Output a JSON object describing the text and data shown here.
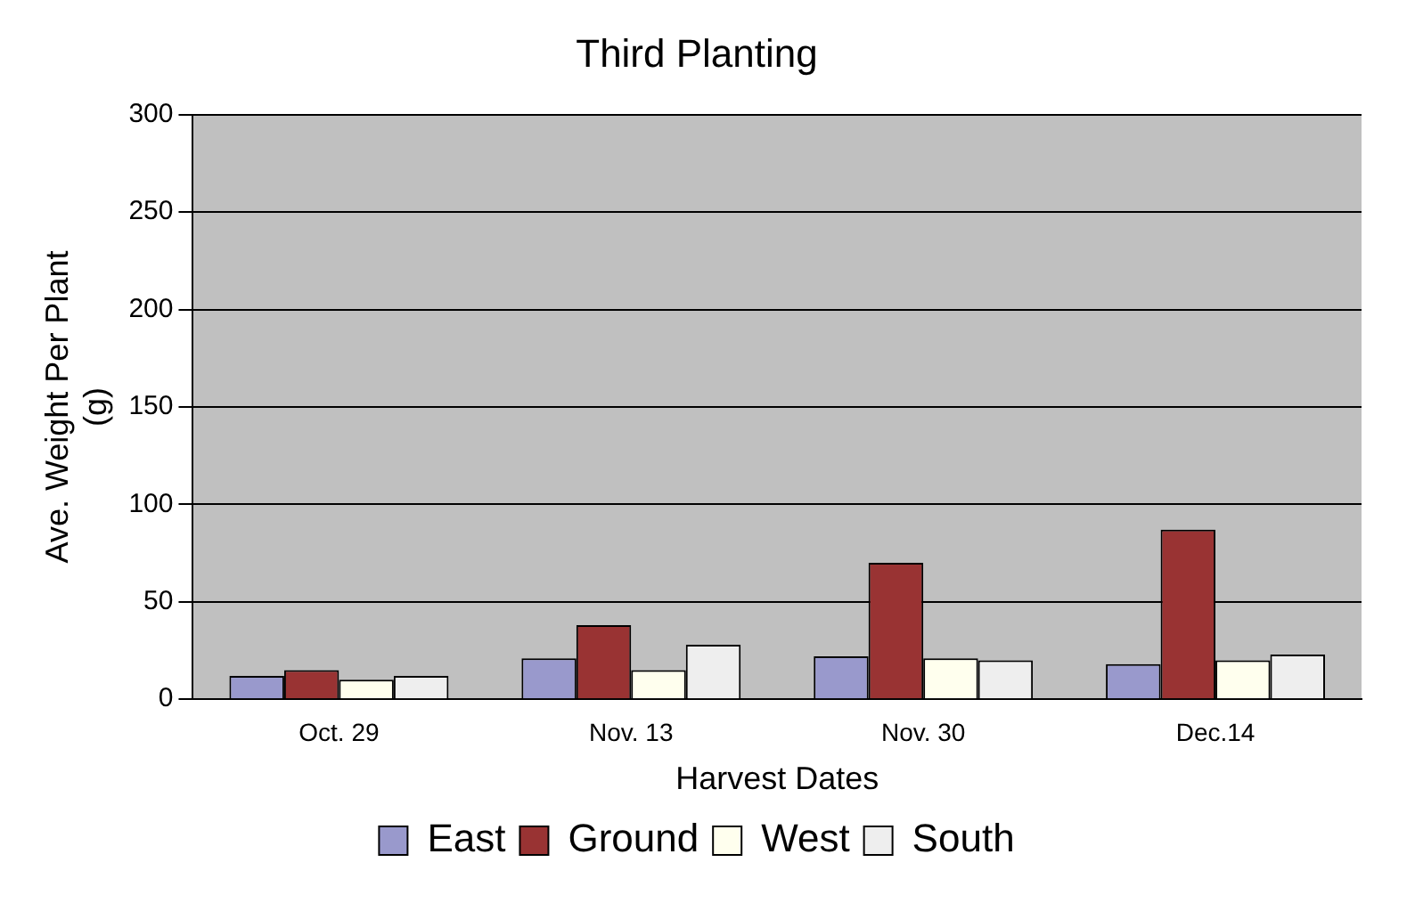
{
  "chart_data": {
    "type": "bar",
    "title": "Third Planting",
    "xlabel": "Harvest Dates",
    "ylabel": "Ave. Weight Per Plant (g)",
    "categories": [
      "Oct. 29",
      "Nov. 13",
      "Nov. 30",
      "Dec.14"
    ],
    "series": [
      {
        "name": "East",
        "color": "#9999cc",
        "values": [
          12,
          21,
          22,
          18
        ]
      },
      {
        "name": "Ground",
        "color": "#993333",
        "values": [
          15,
          38,
          70,
          87
        ]
      },
      {
        "name": "West",
        "color": "#ffffee",
        "values": [
          10,
          15,
          21,
          20
        ]
      },
      {
        "name": "South",
        "color": "#eeeeee",
        "values": [
          12,
          28,
          20,
          23
        ]
      }
    ],
    "ylim": [
      0,
      300
    ],
    "yticks": [
      0,
      50,
      100,
      150,
      200,
      250,
      300
    ],
    "grid": "y",
    "legend": "bottom"
  }
}
